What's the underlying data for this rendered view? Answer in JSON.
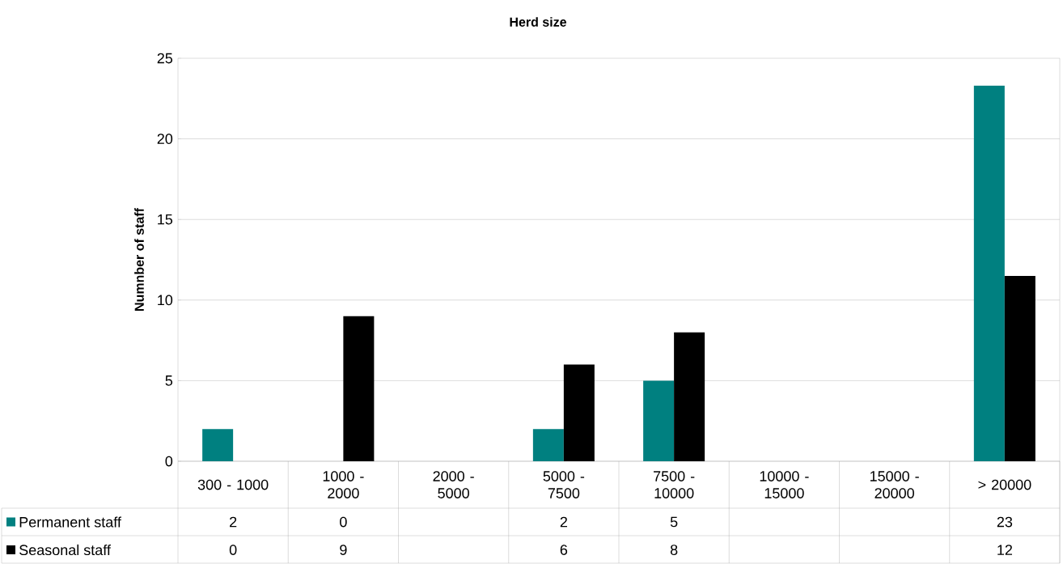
{
  "chart_data": {
    "type": "bar",
    "title": "Herd size",
    "ylabel": "Numnber of staff",
    "categories": [
      "300 - 1000",
      "1000 - 2000",
      "2000 - 5000",
      "5000 - 7500",
      "7500 - 10000",
      "10000 - 15000",
      "15000 - 20000",
      "> 20000"
    ],
    "series": [
      {
        "name": "Permanent staff",
        "color": "#008080",
        "values": [
          2,
          0,
          null,
          2,
          5,
          null,
          null,
          23.3
        ],
        "value_labels": [
          "2",
          "0",
          null,
          "2",
          "5",
          null,
          null,
          "23"
        ]
      },
      {
        "name": "Seasonal staff",
        "color": "#000000",
        "values": [
          0,
          9,
          null,
          6,
          8,
          null,
          null,
          11.5
        ],
        "value_labels": [
          "0",
          "9",
          null,
          "6",
          "8",
          null,
          null,
          "12"
        ]
      }
    ],
    "ylim": [
      0,
      25
    ],
    "yticks": [
      0,
      5,
      10,
      15,
      20,
      25
    ],
    "grid": "y",
    "legend": "bottom left"
  }
}
